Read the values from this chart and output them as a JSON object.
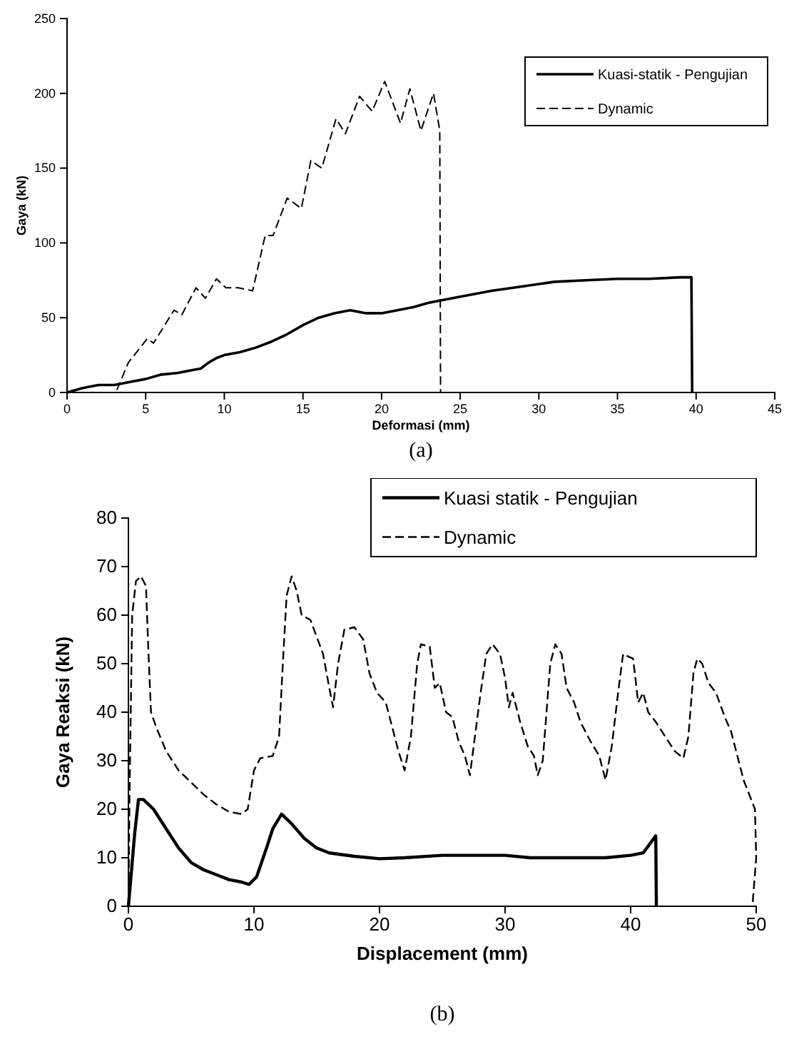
{
  "chart_data": [
    {
      "type": "line",
      "xlabel": "Deformasi (mm)",
      "ylabel": "Gaya (kN)",
      "xlim": [
        0,
        45
      ],
      "xticks": [
        0,
        5,
        10,
        15,
        20,
        25,
        30,
        35,
        40,
        45
      ],
      "ylim": [
        0,
        250
      ],
      "yticks": [
        0,
        50,
        100,
        150,
        200,
        250
      ],
      "legend": "top right",
      "annotations": [
        "(a)"
      ],
      "series": [
        {
          "name": "Kuasi-statik - Pengujian",
          "color": "#000000",
          "line_style": "solid",
          "x": [
            0,
            1,
            2,
            3,
            4,
            5,
            6,
            7,
            8,
            8.5,
            9,
            9.5,
            10,
            11,
            12,
            13,
            14,
            15,
            16,
            17,
            18,
            19,
            20,
            21,
            22,
            23,
            24,
            25,
            27,
            29,
            31,
            33,
            35,
            37,
            39,
            39.7,
            39.75
          ],
          "values": [
            0,
            3,
            5,
            5,
            7,
            9,
            12,
            13,
            15,
            16,
            20,
            23,
            25,
            27,
            30,
            34,
            39,
            45,
            50,
            53,
            55,
            53,
            53,
            55,
            57,
            60,
            62,
            64,
            68,
            71,
            74,
            75,
            76,
            76,
            77,
            77,
            0
          ]
        },
        {
          "name": "Dynamic",
          "color": "#000000",
          "line_style": "dashed",
          "x": [
            0,
            3.1,
            3.9,
            5.1,
            5.5,
            6.8,
            7.3,
            8.2,
            8.8,
            9.5,
            10.1,
            10.9,
            11.8,
            12.6,
            13.1,
            14,
            14.9,
            15.5,
            16.2,
            17.1,
            17.7,
            18.6,
            19.4,
            20.2,
            21.2,
            21.8,
            22.5,
            23.3,
            23.7,
            23.75
          ],
          "values": [
            0,
            0,
            20,
            36,
            33,
            55,
            52,
            70,
            63,
            76,
            70,
            70,
            68,
            105,
            105,
            130,
            123,
            155,
            150,
            183,
            173,
            198,
            188,
            208,
            180,
            203,
            175,
            200,
            175,
            0
          ]
        }
      ]
    },
    {
      "type": "line",
      "xlabel": "Displacement (mm)",
      "ylabel": "Gaya Reaksi (kN)",
      "xlim": [
        0,
        50
      ],
      "xticks": [
        0,
        10,
        20,
        30,
        40,
        50
      ],
      "ylim": [
        0,
        80
      ],
      "yticks": [
        0,
        10,
        20,
        30,
        40,
        50,
        60,
        70,
        80
      ],
      "legend": "top right",
      "annotations": [
        "(b)"
      ],
      "series": [
        {
          "name": "Kuasi statik - Pengujian",
          "color": "#000000",
          "line_style": "solid",
          "x": [
            0,
            0.5,
            0.8,
            1.2,
            2,
            3,
            4,
            5,
            6,
            7,
            8,
            9,
            9.6,
            10.2,
            11,
            11.5,
            12.2,
            13,
            14,
            15,
            16,
            18,
            20,
            22,
            25,
            30,
            32,
            35,
            38,
            40,
            41,
            42,
            42.05
          ],
          "values": [
            0,
            15,
            22,
            22,
            20,
            16,
            12,
            9,
            7.5,
            6.5,
            5.5,
            5,
            4.5,
            6,
            12,
            16,
            19,
            17,
            14,
            12,
            11,
            10.3,
            9.8,
            10,
            10.5,
            10.5,
            10,
            10,
            10,
            10.5,
            11,
            14.5,
            0
          ]
        },
        {
          "name": "Dynamic",
          "color": "#000000",
          "line_style": "dashed",
          "x": [
            0,
            0.1,
            0.3,
            0.6,
            1,
            1.4,
            1.6,
            1.8,
            2.2,
            3,
            4,
            5,
            6,
            7,
            8,
            9,
            9.5,
            10,
            10.5,
            11.5,
            12,
            12.3,
            12.6,
            13,
            13.4,
            13.8,
            14.5,
            15.5,
            16,
            16.3,
            16.7,
            17.2,
            18,
            18.7,
            19.2,
            19.8,
            20.5,
            21,
            21.5,
            22,
            22.5,
            23,
            23.3,
            24,
            24.4,
            24.8,
            25.3,
            25.8,
            26.3,
            26.8,
            27.2,
            28,
            28.5,
            29,
            29.6,
            30,
            30.3,
            30.6,
            31.2,
            31.8,
            32.3,
            32.6,
            33,
            33.6,
            34,
            34.5,
            34.9,
            35.5,
            36,
            36.8,
            37.5,
            38,
            38.5,
            39,
            39.4,
            40.2,
            40.6,
            41,
            41.4,
            42,
            42.5,
            43.5,
            44.2,
            44.6,
            45,
            45.3,
            45.7,
            46.2,
            46.8,
            47.5,
            48,
            48.5,
            49,
            49.6,
            49.9,
            50,
            49.7
          ],
          "values": [
            0,
            25,
            60,
            67,
            68,
            66,
            52,
            40,
            37,
            32,
            28,
            25.5,
            23,
            21,
            19.5,
            19,
            20,
            28,
            30.5,
            31,
            35,
            50,
            64,
            68,
            65,
            60,
            59,
            52,
            45,
            41,
            50,
            57,
            57.5,
            55,
            48,
            44,
            42,
            37,
            32,
            28,
            35,
            50,
            54,
            53.5,
            45,
            46,
            40,
            39,
            34,
            31,
            27,
            43,
            52,
            54,
            52,
            47,
            41,
            44,
            38,
            33,
            31,
            27,
            30,
            50,
            54,
            52,
            45,
            42,
            38,
            34,
            31,
            26,
            33,
            44,
            52,
            51,
            42,
            44,
            40,
            38,
            36,
            32,
            30.5,
            35,
            48,
            51,
            50,
            46,
            44,
            39,
            36,
            31,
            26,
            22,
            20,
            10,
            0
          ]
        }
      ]
    }
  ]
}
